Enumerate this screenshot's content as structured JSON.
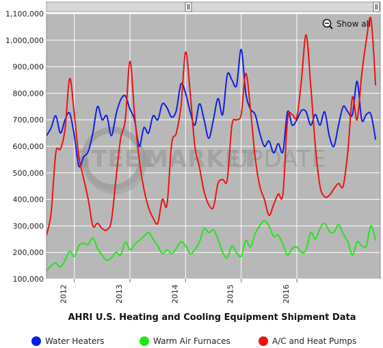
{
  "chart_data": {
    "type": "line",
    "title": "AHRI U.S. Heating and Cooling Equipment Shipment Data",
    "ylim": [
      100000,
      1100000
    ],
    "yticks": [
      100000,
      200000,
      300000,
      400000,
      500000,
      600000,
      700000,
      800000,
      900000,
      1000000,
      1100000
    ],
    "ytick_labels": [
      "100,000",
      "200,000",
      "300,000",
      "400,000",
      "500,000",
      "600,000",
      "700,000",
      "800,000",
      "900,000",
      "1,000,000",
      "1,100,000"
    ],
    "xlim": [
      "2011-07",
      "2017-07"
    ],
    "xticks": [
      {
        "label": "2012",
        "date": "2012-01"
      },
      {
        "label": "2013",
        "date": "2013-01"
      },
      {
        "label": "2014",
        "date": "2014-01"
      },
      {
        "label": "2015",
        "date": "2015-01"
      },
      {
        "label": "2016",
        "date": "2016-01"
      }
    ],
    "grid": true,
    "legend_position": "bottom",
    "series": [
      {
        "name": "Water Heaters",
        "color": "#0a1ee6",
        "points": [
          [
            "2011-07",
            640000
          ],
          [
            "2011-08",
            670000
          ],
          [
            "2011-09",
            715000
          ],
          [
            "2011-10",
            650000
          ],
          [
            "2011-11",
            700000
          ],
          [
            "2011-12",
            725000
          ],
          [
            "2012-01",
            640000
          ],
          [
            "2012-02",
            525000
          ],
          [
            "2012-03",
            560000
          ],
          [
            "2012-04",
            580000
          ],
          [
            "2012-05",
            650000
          ],
          [
            "2012-06",
            750000
          ],
          [
            "2012-07",
            700000
          ],
          [
            "2012-08",
            715000
          ],
          [
            "2012-09",
            640000
          ],
          [
            "2012-10",
            720000
          ],
          [
            "2012-11",
            775000
          ],
          [
            "2012-12",
            790000
          ],
          [
            "2013-01",
            740000
          ],
          [
            "2013-02",
            700000
          ],
          [
            "2013-03",
            600000
          ],
          [
            "2013-04",
            670000
          ],
          [
            "2013-05",
            650000
          ],
          [
            "2013-06",
            715000
          ],
          [
            "2013-07",
            700000
          ],
          [
            "2013-08",
            760000
          ],
          [
            "2013-09",
            745000
          ],
          [
            "2013-10",
            710000
          ],
          [
            "2013-11",
            735000
          ],
          [
            "2013-12",
            835000
          ],
          [
            "2014-01",
            800000
          ],
          [
            "2014-02",
            730000
          ],
          [
            "2014-03",
            680000
          ],
          [
            "2014-04",
            760000
          ],
          [
            "2014-05",
            700000
          ],
          [
            "2014-06",
            630000
          ],
          [
            "2014-07",
            700000
          ],
          [
            "2014-08",
            780000
          ],
          [
            "2014-09",
            720000
          ],
          [
            "2014-10",
            870000
          ],
          [
            "2014-11",
            850000
          ],
          [
            "2014-12",
            830000
          ],
          [
            "2015-01",
            965000
          ],
          [
            "2015-02",
            800000
          ],
          [
            "2015-03",
            740000
          ],
          [
            "2015-04",
            720000
          ],
          [
            "2015-05",
            650000
          ],
          [
            "2015-06",
            600000
          ],
          [
            "2015-07",
            620000
          ],
          [
            "2015-08",
            575000
          ],
          [
            "2015-09",
            610000
          ],
          [
            "2015-10",
            580000
          ],
          [
            "2015-11",
            730000
          ],
          [
            "2015-12",
            680000
          ],
          [
            "2016-01",
            700000
          ],
          [
            "2016-02",
            735000
          ],
          [
            "2016-03",
            730000
          ],
          [
            "2016-04",
            680000
          ],
          [
            "2016-05",
            720000
          ],
          [
            "2016-06",
            680000
          ],
          [
            "2016-07",
            730000
          ],
          [
            "2016-08",
            640000
          ],
          [
            "2016-09",
            600000
          ],
          [
            "2016-10",
            680000
          ],
          [
            "2016-11",
            750000
          ],
          [
            "2016-12",
            730000
          ],
          [
            "2017-01",
            720000
          ],
          [
            "2017-02",
            845000
          ],
          [
            "2017-03",
            700000
          ],
          [
            "2017-04",
            720000
          ],
          [
            "2017-05",
            720000
          ],
          [
            "2017-06",
            625000
          ]
        ]
      },
      {
        "name": "Warm Air Furnaces",
        "color": "#22e51a",
        "points": [
          [
            "2011-07",
            130000
          ],
          [
            "2011-08",
            150000
          ],
          [
            "2011-09",
            160000
          ],
          [
            "2011-10",
            145000
          ],
          [
            "2011-11",
            170000
          ],
          [
            "2011-12",
            205000
          ],
          [
            "2012-01",
            185000
          ],
          [
            "2012-02",
            225000
          ],
          [
            "2012-03",
            235000
          ],
          [
            "2012-04",
            230000
          ],
          [
            "2012-05",
            255000
          ],
          [
            "2012-06",
            215000
          ],
          [
            "2012-07",
            190000
          ],
          [
            "2012-08",
            170000
          ],
          [
            "2012-09",
            180000
          ],
          [
            "2012-10",
            200000
          ],
          [
            "2012-11",
            190000
          ],
          [
            "2012-12",
            240000
          ],
          [
            "2013-01",
            210000
          ],
          [
            "2013-02",
            230000
          ],
          [
            "2013-03",
            245000
          ],
          [
            "2013-04",
            260000
          ],
          [
            "2013-05",
            275000
          ],
          [
            "2013-06",
            250000
          ],
          [
            "2013-07",
            225000
          ],
          [
            "2013-08",
            195000
          ],
          [
            "2013-09",
            210000
          ],
          [
            "2013-10",
            195000
          ],
          [
            "2013-11",
            215000
          ],
          [
            "2013-12",
            240000
          ],
          [
            "2014-01",
            225000
          ],
          [
            "2014-02",
            195000
          ],
          [
            "2014-03",
            210000
          ],
          [
            "2014-04",
            240000
          ],
          [
            "2014-05",
            290000
          ],
          [
            "2014-06",
            275000
          ],
          [
            "2014-07",
            285000
          ],
          [
            "2014-08",
            250000
          ],
          [
            "2014-09",
            200000
          ],
          [
            "2014-10",
            180000
          ],
          [
            "2014-11",
            225000
          ],
          [
            "2014-12",
            200000
          ],
          [
            "2015-01",
            185000
          ],
          [
            "2015-02",
            245000
          ],
          [
            "2015-03",
            220000
          ],
          [
            "2015-04",
            270000
          ],
          [
            "2015-05",
            300000
          ],
          [
            "2015-06",
            320000
          ],
          [
            "2015-07",
            300000
          ],
          [
            "2015-08",
            260000
          ],
          [
            "2015-09",
            265000
          ],
          [
            "2015-10",
            230000
          ],
          [
            "2015-11",
            190000
          ],
          [
            "2015-12",
            215000
          ],
          [
            "2016-01",
            220000
          ],
          [
            "2016-02",
            200000
          ],
          [
            "2016-03",
            210000
          ],
          [
            "2016-04",
            275000
          ],
          [
            "2016-05",
            250000
          ],
          [
            "2016-06",
            290000
          ],
          [
            "2016-07",
            310000
          ],
          [
            "2016-08",
            280000
          ],
          [
            "2016-09",
            275000
          ],
          [
            "2016-10",
            305000
          ],
          [
            "2016-11",
            270000
          ],
          [
            "2016-12",
            240000
          ],
          [
            "2017-01",
            190000
          ],
          [
            "2017-02",
            240000
          ],
          [
            "2017-03",
            225000
          ],
          [
            "2017-04",
            225000
          ],
          [
            "2017-05",
            300000
          ],
          [
            "2017-06",
            245000
          ]
        ]
      },
      {
        "name": "A/C and Heat Pumps",
        "color": "#ee1111",
        "points": [
          [
            "2011-07",
            265000
          ],
          [
            "2011-08",
            350000
          ],
          [
            "2011-09",
            575000
          ],
          [
            "2011-10",
            590000
          ],
          [
            "2011-11",
            665000
          ],
          [
            "2011-12",
            855000
          ],
          [
            "2012-01",
            720000
          ],
          [
            "2012-02",
            560000
          ],
          [
            "2012-03",
            480000
          ],
          [
            "2012-04",
            400000
          ],
          [
            "2012-05",
            300000
          ],
          [
            "2012-06",
            310000
          ],
          [
            "2012-07",
            290000
          ],
          [
            "2012-08",
            285000
          ],
          [
            "2012-09",
            320000
          ],
          [
            "2012-10",
            480000
          ],
          [
            "2012-11",
            630000
          ],
          [
            "2012-12",
            700000
          ],
          [
            "2013-01",
            920000
          ],
          [
            "2013-02",
            720000
          ],
          [
            "2013-03",
            550000
          ],
          [
            "2013-04",
            440000
          ],
          [
            "2013-05",
            370000
          ],
          [
            "2013-06",
            330000
          ],
          [
            "2013-07",
            310000
          ],
          [
            "2013-08",
            400000
          ],
          [
            "2013-09",
            380000
          ],
          [
            "2013-10",
            610000
          ],
          [
            "2013-11",
            650000
          ],
          [
            "2013-12",
            750000
          ],
          [
            "2014-01",
            955000
          ],
          [
            "2014-02",
            800000
          ],
          [
            "2014-03",
            600000
          ],
          [
            "2014-04",
            520000
          ],
          [
            "2014-05",
            430000
          ],
          [
            "2014-06",
            380000
          ],
          [
            "2014-07",
            370000
          ],
          [
            "2014-08",
            460000
          ],
          [
            "2014-09",
            475000
          ],
          [
            "2014-10",
            475000
          ],
          [
            "2014-11",
            680000
          ],
          [
            "2014-12",
            700000
          ],
          [
            "2015-01",
            720000
          ],
          [
            "2015-02",
            875000
          ],
          [
            "2015-03",
            740000
          ],
          [
            "2015-04",
            560000
          ],
          [
            "2015-05",
            450000
          ],
          [
            "2015-06",
            400000
          ],
          [
            "2015-07",
            340000
          ],
          [
            "2015-08",
            380000
          ],
          [
            "2015-09",
            420000
          ],
          [
            "2015-10",
            420000
          ],
          [
            "2015-11",
            700000
          ],
          [
            "2015-12",
            720000
          ],
          [
            "2016-01",
            710000
          ],
          [
            "2016-02",
            850000
          ],
          [
            "2016-03",
            1020000
          ],
          [
            "2016-04",
            830000
          ],
          [
            "2016-05",
            600000
          ],
          [
            "2016-06",
            450000
          ],
          [
            "2016-07",
            410000
          ],
          [
            "2016-08",
            415000
          ],
          [
            "2016-09",
            440000
          ],
          [
            "2016-10",
            460000
          ],
          [
            "2016-11",
            450000
          ],
          [
            "2016-12",
            580000
          ],
          [
            "2017-01",
            785000
          ],
          [
            "2017-02",
            700000
          ],
          [
            "2017-03",
            870000
          ],
          [
            "2017-04",
            1000000
          ],
          [
            "2017-05",
            1080000
          ],
          [
            "2017-06",
            830000
          ]
        ]
      }
    ]
  },
  "toolbar": {
    "show_all_label": "Show all",
    "zoom_icon": "zoom-out-icon"
  },
  "watermark": {
    "text_steel": "STEEL",
    "text_market": "MARKET",
    "text_update": "UPDATE"
  },
  "colors": {
    "plot_background": "#b8b8b8",
    "gridline": "#ffffff",
    "scrollbar_track": "#d8d8d8"
  }
}
